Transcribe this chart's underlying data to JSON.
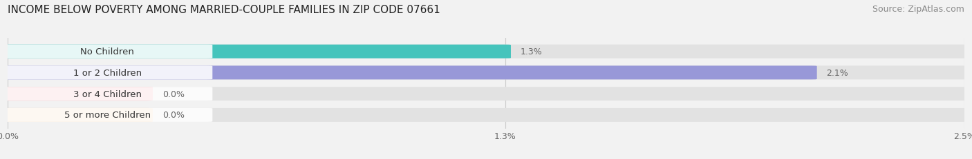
{
  "title": "INCOME BELOW POVERTY AMONG MARRIED-COUPLE FAMILIES IN ZIP CODE 07661",
  "source": "Source: ZipAtlas.com",
  "categories": [
    "No Children",
    "1 or 2 Children",
    "3 or 4 Children",
    "5 or more Children"
  ],
  "values": [
    1.3,
    2.1,
    0.0,
    0.0
  ],
  "bar_colors": [
    "#45c4bc",
    "#9898d8",
    "#f0909a",
    "#f5c99a"
  ],
  "xlim": [
    0,
    2.5
  ],
  "xticks": [
    0.0,
    1.3,
    2.5
  ],
  "xtick_labels": [
    "0.0%",
    "1.3%",
    "2.5%"
  ],
  "bar_height": 0.62,
  "background_color": "#f2f2f2",
  "bar_bg_color": "#e2e2e2",
  "title_fontsize": 11,
  "source_fontsize": 9,
  "label_fontsize": 9.5,
  "value_fontsize": 9
}
